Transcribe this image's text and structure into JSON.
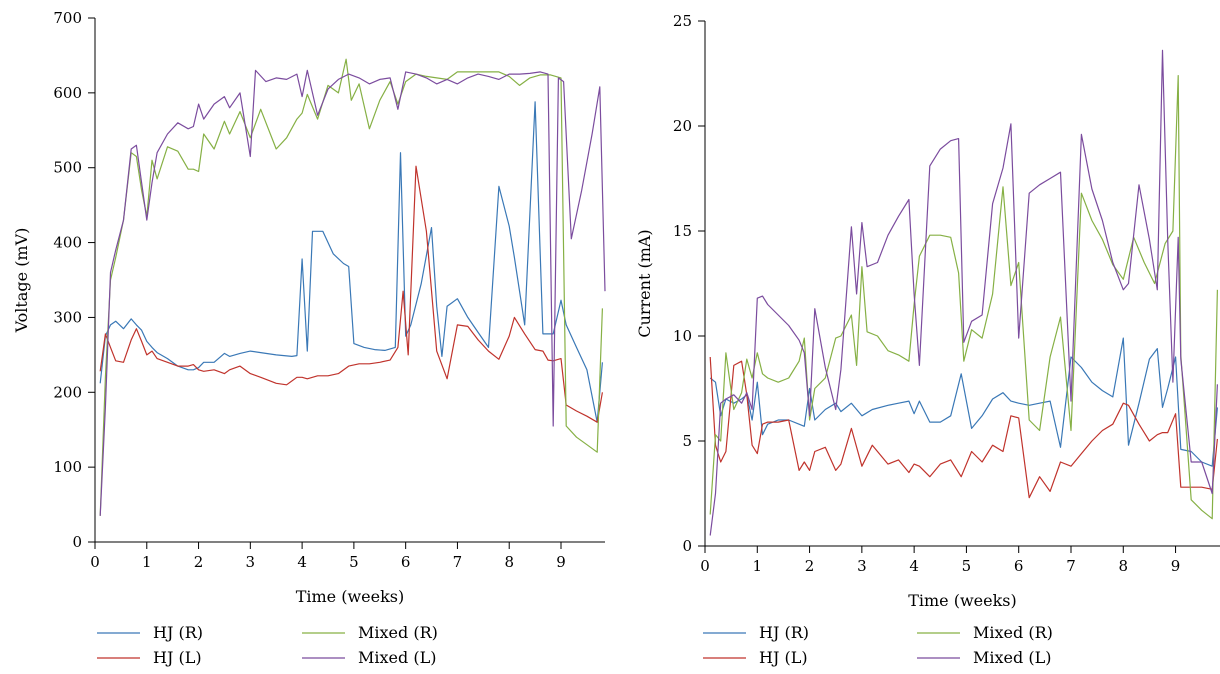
{
  "chart_data": [
    {
      "type": "line",
      "title": "",
      "xlabel": "Time (weeks)",
      "ylabel": "Voltage (mV)",
      "xlim": [
        0,
        9.85
      ],
      "ylim": [
        0,
        700
      ],
      "xticks": [
        0,
        1,
        2,
        3,
        4,
        5,
        6,
        7,
        8,
        9
      ],
      "yticks": [
        0,
        100,
        200,
        300,
        400,
        500,
        600,
        700
      ],
      "grid": false,
      "legend_position": "bottom",
      "series": [
        {
          "name": "HJ (R)",
          "color": "#3a78b6",
          "x": [
            0.1,
            0.2,
            0.3,
            0.4,
            0.55,
            0.7,
            0.8,
            0.9,
            1.0,
            1.1,
            1.2,
            1.4,
            1.6,
            1.8,
            1.9,
            2.0,
            2.1,
            2.3,
            2.5,
            2.6,
            2.8,
            3.0,
            3.2,
            3.5,
            3.8,
            3.9,
            4.0,
            4.1,
            4.2,
            4.4,
            4.6,
            4.8,
            4.9,
            5.0,
            5.2,
            5.4,
            5.6,
            5.8,
            5.9,
            6.0,
            6.1,
            6.3,
            6.5,
            6.6,
            6.7,
            6.8,
            6.9,
            7.0,
            7.2,
            7.4,
            7.6,
            7.8,
            8.0,
            8.1,
            8.3,
            8.5,
            8.65,
            8.75,
            8.85,
            9.0,
            9.1,
            9.3,
            9.5,
            9.7,
            9.8
          ],
          "values": [
            212,
            275,
            290,
            295,
            285,
            298,
            290,
            283,
            268,
            260,
            253,
            245,
            235,
            230,
            230,
            233,
            240,
            240,
            252,
            248,
            252,
            255,
            253,
            250,
            248,
            249,
            378,
            255,
            415,
            415,
            385,
            372,
            368,
            265,
            260,
            257,
            256,
            260,
            520,
            275,
            290,
            345,
            420,
            315,
            248,
            315,
            320,
            325,
            300,
            280,
            260,
            475,
            422,
            380,
            290,
            588,
            278,
            278,
            278,
            323,
            290,
            260,
            230,
            160,
            240
          ]
        },
        {
          "name": "HJ (L)",
          "color": "#c0332c",
          "x": [
            0.1,
            0.2,
            0.3,
            0.4,
            0.55,
            0.7,
            0.8,
            0.9,
            1.0,
            1.1,
            1.2,
            1.4,
            1.6,
            1.8,
            1.9,
            2.0,
            2.1,
            2.3,
            2.5,
            2.6,
            2.8,
            3.0,
            3.2,
            3.5,
            3.7,
            3.9,
            4.0,
            4.1,
            4.3,
            4.5,
            4.7,
            4.9,
            5.1,
            5.3,
            5.5,
            5.7,
            5.85,
            5.95,
            6.05,
            6.2,
            6.4,
            6.6,
            6.8,
            7.0,
            7.2,
            7.4,
            7.6,
            7.8,
            8.0,
            8.1,
            8.3,
            8.5,
            8.65,
            8.75,
            8.85,
            9.0,
            9.1,
            9.3,
            9.5,
            9.7,
            9.8
          ],
          "values": [
            228,
            278,
            260,
            242,
            240,
            270,
            285,
            268,
            250,
            255,
            245,
            240,
            235,
            235,
            237,
            230,
            228,
            230,
            225,
            230,
            235,
            225,
            220,
            212,
            210,
            220,
            220,
            218,
            222,
            222,
            225,
            235,
            238,
            238,
            240,
            243,
            260,
            335,
            250,
            502,
            415,
            255,
            218,
            290,
            288,
            270,
            255,
            244,
            275,
            300,
            278,
            257,
            255,
            243,
            242,
            245,
            183,
            175,
            168,
            160,
            200
          ]
        },
        {
          "name": "Mixed (R)",
          "color": "#86b045",
          "x": [
            0.1,
            0.2,
            0.3,
            0.4,
            0.55,
            0.7,
            0.8,
            0.9,
            1.0,
            1.1,
            1.2,
            1.4,
            1.6,
            1.8,
            1.9,
            2.0,
            2.1,
            2.3,
            2.5,
            2.6,
            2.8,
            3.0,
            3.2,
            3.5,
            3.7,
            3.9,
            4.0,
            4.1,
            4.3,
            4.5,
            4.7,
            4.85,
            4.95,
            5.1,
            5.3,
            5.5,
            5.7,
            5.85,
            6.0,
            6.2,
            6.4,
            6.6,
            6.8,
            7.0,
            7.2,
            7.4,
            7.6,
            7.8,
            8.0,
            8.2,
            8.4,
            8.6,
            8.8,
            9.0,
            9.1,
            9.3,
            9.5,
            9.7,
            9.8
          ],
          "values": [
            35,
            220,
            350,
            380,
            430,
            520,
            515,
            470,
            435,
            510,
            485,
            528,
            522,
            498,
            498,
            495,
            545,
            525,
            562,
            545,
            575,
            540,
            578,
            525,
            540,
            565,
            573,
            598,
            565,
            610,
            600,
            645,
            590,
            612,
            552,
            590,
            615,
            585,
            615,
            625,
            622,
            620,
            618,
            628,
            628,
            628,
            628,
            628,
            622,
            610,
            620,
            624,
            624,
            620,
            155,
            140,
            130,
            120,
            312
          ]
        },
        {
          "name": "Mixed (L)",
          "color": "#7b4c9e",
          "x": [
            0.1,
            0.2,
            0.3,
            0.4,
            0.55,
            0.7,
            0.8,
            0.9,
            1.0,
            1.1,
            1.2,
            1.4,
            1.6,
            1.8,
            1.9,
            2.0,
            2.1,
            2.3,
            2.5,
            2.6,
            2.8,
            3.0,
            3.1,
            3.3,
            3.5,
            3.7,
            3.9,
            4.0,
            4.1,
            4.3,
            4.5,
            4.7,
            4.9,
            5.1,
            5.3,
            5.5,
            5.7,
            5.85,
            6.0,
            6.2,
            6.4,
            6.6,
            6.8,
            7.0,
            7.2,
            7.4,
            7.6,
            7.8,
            8.0,
            8.2,
            8.4,
            8.6,
            8.75,
            8.85,
            8.95,
            9.05,
            9.2,
            9.4,
            9.6,
            9.75,
            9.85
          ],
          "values": [
            35,
            180,
            360,
            390,
            430,
            525,
            530,
            480,
            430,
            480,
            520,
            545,
            560,
            552,
            555,
            585,
            565,
            585,
            595,
            580,
            600,
            515,
            630,
            615,
            620,
            618,
            625,
            595,
            630,
            570,
            605,
            618,
            625,
            620,
            612,
            618,
            620,
            578,
            628,
            625,
            620,
            612,
            618,
            612,
            620,
            625,
            622,
            618,
            625,
            625,
            626,
            628,
            625,
            155,
            620,
            615,
            405,
            470,
            545,
            608,
            335
          ]
        }
      ]
    },
    {
      "type": "line",
      "title": "",
      "xlabel": "Time (weeks)",
      "ylabel": "Current (mA)",
      "xlim": [
        0,
        9.85
      ],
      "ylim": [
        0,
        25
      ],
      "xticks": [
        0,
        1,
        2,
        3,
        4,
        5,
        6,
        7,
        8,
        9
      ],
      "yticks": [
        0,
        5,
        10,
        15,
        20,
        25
      ],
      "grid": false,
      "legend_position": "bottom",
      "series": [
        {
          "name": "HJ (R)",
          "color": "#3a78b6",
          "x": [
            0.1,
            0.2,
            0.3,
            0.4,
            0.55,
            0.7,
            0.8,
            0.9,
            1.0,
            1.1,
            1.2,
            1.4,
            1.6,
            1.8,
            1.9,
            2.0,
            2.1,
            2.3,
            2.5,
            2.6,
            2.8,
            3.0,
            3.2,
            3.5,
            3.7,
            3.9,
            4.0,
            4.1,
            4.3,
            4.5,
            4.7,
            4.9,
            5.1,
            5.3,
            5.5,
            5.7,
            5.85,
            6.0,
            6.2,
            6.4,
            6.6,
            6.8,
            7.0,
            7.2,
            7.4,
            7.6,
            7.8,
            8.0,
            8.1,
            8.3,
            8.5,
            8.65,
            8.75,
            8.85,
            9.0,
            9.1,
            9.3,
            9.5,
            9.7,
            9.8
          ],
          "values": [
            8.0,
            7.8,
            6.2,
            7.0,
            6.8,
            7.0,
            7.2,
            6.0,
            7.8,
            5.3,
            5.8,
            6.0,
            6.0,
            5.8,
            5.7,
            7.5,
            6.0,
            6.5,
            6.8,
            6.4,
            6.8,
            6.2,
            6.5,
            6.7,
            6.8,
            6.9,
            6.3,
            6.9,
            5.9,
            5.9,
            6.2,
            8.2,
            5.6,
            6.2,
            7.0,
            7.3,
            6.9,
            6.8,
            6.7,
            6.8,
            6.9,
            4.7,
            9.0,
            8.5,
            7.8,
            7.4,
            7.1,
            9.9,
            4.8,
            6.8,
            8.9,
            9.4,
            6.6,
            7.5,
            9.0,
            4.6,
            4.5,
            4.0,
            3.8,
            6.6
          ]
        },
        {
          "name": "HJ (L)",
          "color": "#c0332c",
          "x": [
            0.1,
            0.2,
            0.3,
            0.4,
            0.55,
            0.7,
            0.8,
            0.9,
            1.0,
            1.1,
            1.2,
            1.4,
            1.6,
            1.8,
            1.9,
            2.0,
            2.1,
            2.3,
            2.5,
            2.6,
            2.8,
            3.0,
            3.2,
            3.5,
            3.7,
            3.9,
            4.0,
            4.1,
            4.3,
            4.5,
            4.7,
            4.9,
            5.1,
            5.3,
            5.5,
            5.7,
            5.85,
            6.0,
            6.2,
            6.4,
            6.6,
            6.8,
            7.0,
            7.2,
            7.4,
            7.6,
            7.8,
            8.0,
            8.1,
            8.3,
            8.5,
            8.65,
            8.75,
            8.85,
            9.0,
            9.1,
            9.3,
            9.5,
            9.7,
            9.8
          ],
          "values": [
            9.0,
            4.8,
            4.0,
            4.5,
            8.6,
            8.8,
            7.2,
            4.8,
            4.4,
            5.8,
            5.9,
            5.9,
            6.0,
            3.6,
            4.0,
            3.6,
            4.5,
            4.7,
            3.6,
            3.9,
            5.6,
            3.8,
            4.8,
            3.9,
            4.1,
            3.5,
            3.9,
            3.8,
            3.3,
            3.9,
            4.1,
            3.3,
            4.5,
            4.0,
            4.8,
            4.5,
            6.2,
            6.1,
            2.3,
            3.3,
            2.6,
            4.0,
            3.8,
            4.4,
            5.0,
            5.5,
            5.8,
            6.8,
            6.7,
            5.8,
            5.0,
            5.3,
            5.4,
            5.4,
            6.3,
            2.8,
            2.8,
            2.8,
            2.7,
            5.1
          ]
        },
        {
          "name": "Mixed (R)",
          "color": "#86b045",
          "x": [
            0.1,
            0.2,
            0.3,
            0.4,
            0.55,
            0.7,
            0.8,
            0.9,
            1.0,
            1.1,
            1.2,
            1.4,
            1.6,
            1.8,
            1.9,
            2.0,
            2.1,
            2.3,
            2.5,
            2.6,
            2.8,
            2.9,
            3.0,
            3.1,
            3.3,
            3.5,
            3.7,
            3.9,
            4.0,
            4.1,
            4.3,
            4.5,
            4.7,
            4.85,
            4.95,
            5.1,
            5.3,
            5.5,
            5.7,
            5.85,
            6.0,
            6.2,
            6.4,
            6.6,
            6.8,
            7.0,
            7.2,
            7.4,
            7.6,
            7.8,
            8.0,
            8.2,
            8.4,
            8.6,
            8.8,
            8.95,
            9.05,
            9.1,
            9.3,
            9.5,
            9.7,
            9.8
          ],
          "values": [
            1.5,
            5.3,
            5.0,
            9.2,
            6.5,
            7.3,
            8.9,
            8.0,
            9.2,
            8.2,
            8.0,
            7.8,
            8.0,
            8.8,
            9.9,
            6.0,
            7.5,
            8.0,
            9.9,
            10.0,
            11.0,
            8.6,
            13.3,
            10.2,
            10.0,
            9.3,
            9.1,
            8.8,
            11.5,
            13.8,
            14.8,
            14.8,
            14.7,
            13.0,
            8.8,
            10.3,
            9.9,
            12.0,
            17.1,
            12.4,
            13.5,
            6.0,
            5.5,
            9.0,
            10.9,
            5.5,
            16.8,
            15.5,
            14.6,
            13.4,
            12.7,
            14.7,
            13.5,
            12.5,
            14.4,
            15.0,
            22.4,
            9.1,
            2.2,
            1.7,
            1.3,
            12.2
          ]
        },
        {
          "name": "Mixed (L)",
          "color": "#7b4c9e",
          "x": [
            0.1,
            0.2,
            0.3,
            0.4,
            0.55,
            0.7,
            0.8,
            0.9,
            1.0,
            1.1,
            1.2,
            1.4,
            1.6,
            1.8,
            1.9,
            2.0,
            2.1,
            2.3,
            2.5,
            2.6,
            2.8,
            2.9,
            3.0,
            3.1,
            3.3,
            3.5,
            3.7,
            3.9,
            4.0,
            4.1,
            4.3,
            4.5,
            4.7,
            4.85,
            4.95,
            5.1,
            5.3,
            5.5,
            5.7,
            5.85,
            6.0,
            6.2,
            6.4,
            6.6,
            6.8,
            7.0,
            7.2,
            7.4,
            7.6,
            7.8,
            8.0,
            8.1,
            8.3,
            8.5,
            8.65,
            8.75,
            8.85,
            8.95,
            9.05,
            9.1,
            9.3,
            9.5,
            9.7,
            9.8
          ],
          "values": [
            0.5,
            2.5,
            6.8,
            7.0,
            7.2,
            6.8,
            7.3,
            6.5,
            11.8,
            11.9,
            11.5,
            11.0,
            10.5,
            9.8,
            9.2,
            6.2,
            11.3,
            8.5,
            6.5,
            8.4,
            15.2,
            12.0,
            15.4,
            13.3,
            13.5,
            14.8,
            15.7,
            16.5,
            12.0,
            8.6,
            18.1,
            18.9,
            19.3,
            19.4,
            9.7,
            10.7,
            11.0,
            16.3,
            18.0,
            20.1,
            9.9,
            16.8,
            17.2,
            17.5,
            17.8,
            6.9,
            19.6,
            17.0,
            15.5,
            13.5,
            12.2,
            12.5,
            17.2,
            14.6,
            12.2,
            23.6,
            14.6,
            7.8,
            14.7,
            8.9,
            4.0,
            4.0,
            2.5,
            7.7
          ]
        }
      ]
    }
  ]
}
